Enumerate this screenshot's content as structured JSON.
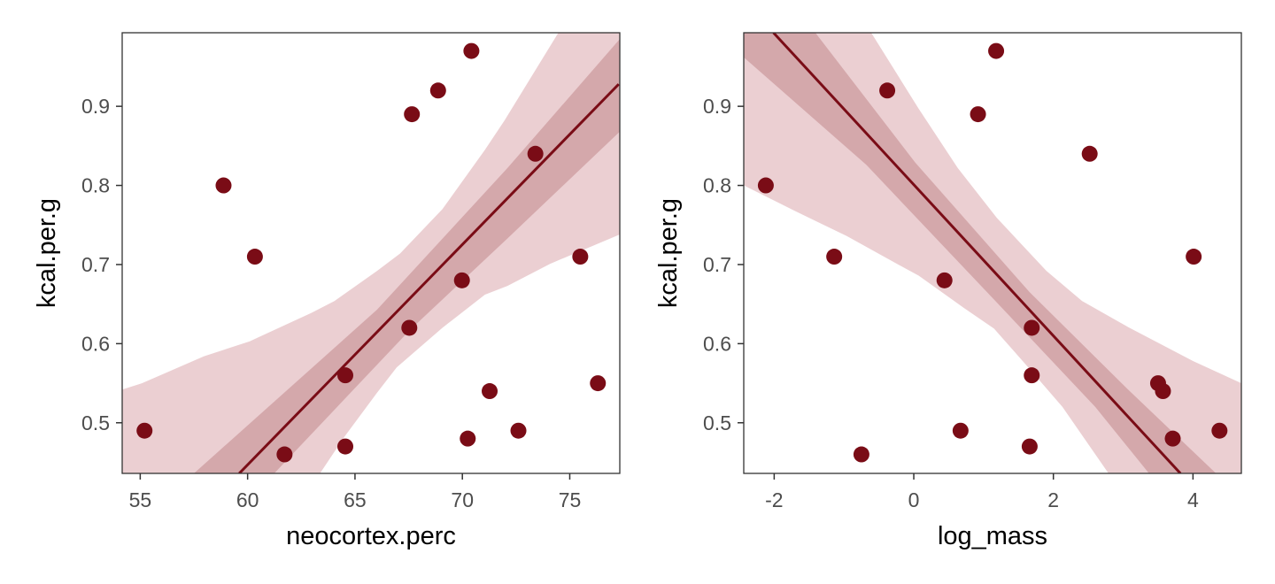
{
  "colors": {
    "point": "#7a0c16",
    "line": "#7a0c16",
    "outer_band": "#ebcfd2",
    "inner_band": "#d4a8ab",
    "axis": "#333333"
  },
  "chart_data": [
    {
      "type": "scatter",
      "xlabel": "neocortex.perc",
      "ylabel": "kcal.per.g",
      "xlim": [
        54.16,
        77.33
      ],
      "ylim": [
        0.436,
        0.993
      ],
      "xticks": [
        55,
        60,
        65,
        70,
        75
      ],
      "xtick_labels": [
        "55",
        "60",
        "65",
        "70",
        "75"
      ],
      "yticks": [
        0.5,
        0.6,
        0.7,
        0.8,
        0.9
      ],
      "ytick_labels": [
        "0.5",
        "0.6",
        "0.7",
        "0.8",
        "0.9"
      ],
      "grid": false,
      "points": [
        [
          55.2,
          0.49
        ],
        [
          58.88,
          0.8
        ],
        [
          60.34,
          0.71
        ],
        [
          61.72,
          0.46
        ],
        [
          64.55,
          0.56
        ],
        [
          64.55,
          0.47
        ],
        [
          67.65,
          0.89
        ],
        [
          68.87,
          0.92
        ],
        [
          70.42,
          0.97
        ],
        [
          67.53,
          0.62
        ],
        [
          69.98,
          0.68
        ],
        [
          71.27,
          0.54
        ],
        [
          70.25,
          0.48
        ],
        [
          72.61,
          0.49
        ],
        [
          73.4,
          0.84
        ],
        [
          75.49,
          0.71
        ],
        [
          76.31,
          0.55
        ]
      ],
      "fit_line": [
        [
          59.61,
          0.436
        ],
        [
          77.28,
          0.928
        ]
      ],
      "outer_band": {
        "upper": [
          [
            54.16,
            0.542
          ],
          [
            55.08,
            0.55
          ],
          [
            57.97,
            0.584
          ],
          [
            60.1,
            0.603
          ],
          [
            62.98,
            0.639
          ],
          [
            64.05,
            0.654
          ],
          [
            66.03,
            0.692
          ],
          [
            67.1,
            0.714
          ],
          [
            69.07,
            0.77
          ],
          [
            71.05,
            0.845
          ],
          [
            71.96,
            0.882
          ],
          [
            74.47,
            0.993
          ],
          [
            77.33,
            0.993
          ]
        ],
        "lower": [
          [
            54.16,
            0.436
          ],
          [
            63.37,
            0.436
          ],
          [
            64.5,
            0.482
          ],
          [
            66.03,
            0.538
          ],
          [
            66.94,
            0.57
          ],
          [
            69.07,
            0.62
          ],
          [
            71.05,
            0.662
          ],
          [
            72.1,
            0.673
          ],
          [
            74.09,
            0.701
          ],
          [
            77.33,
            0.738
          ]
        ]
      },
      "inner_band": {
        "upper": [
          [
            57.5,
            0.436
          ],
          [
            66.03,
            0.643
          ],
          [
            72.1,
            0.822
          ],
          [
            77.33,
            0.985
          ]
        ],
        "lower": [
          [
            61.24,
            0.436
          ],
          [
            67.55,
            0.617
          ],
          [
            72.1,
            0.733
          ],
          [
            77.33,
            0.868
          ]
        ]
      }
    },
    {
      "type": "scatter",
      "xlabel": "log_mass",
      "ylabel": "kcal.per.g",
      "xlim": [
        -2.436,
        4.693
      ],
      "ylim": [
        0.436,
        0.993
      ],
      "xticks": [
        -2,
        0,
        2,
        4
      ],
      "xtick_labels": [
        "-2",
        "0",
        "2",
        "4"
      ],
      "yticks": [
        0.5,
        0.6,
        0.7,
        0.8,
        0.9
      ],
      "ytick_labels": [
        "0.5",
        "0.6",
        "0.7",
        "0.8",
        "0.9"
      ],
      "grid": false,
      "points": [
        [
          -2.12,
          0.8
        ],
        [
          -1.14,
          0.71
        ],
        [
          -0.75,
          0.46
        ],
        [
          -0.38,
          0.92
        ],
        [
          0.44,
          0.68
        ],
        [
          0.67,
          0.49
        ],
        [
          0.92,
          0.89
        ],
        [
          1.18,
          0.97
        ],
        [
          1.69,
          0.62
        ],
        [
          1.69,
          0.56
        ],
        [
          1.66,
          0.47
        ],
        [
          2.52,
          0.84
        ],
        [
          3.5,
          0.55
        ],
        [
          3.57,
          0.54
        ],
        [
          3.71,
          0.48
        ],
        [
          4.01,
          0.71
        ],
        [
          4.38,
          0.49
        ]
      ],
      "fit_line": [
        [
          -2.01,
          0.993
        ],
        [
          3.82,
          0.436
        ]
      ],
      "outer_band": {
        "upper": [
          [
            -2.436,
            0.993
          ],
          [
            -0.61,
            0.993
          ],
          [
            0.07,
            0.897
          ],
          [
            0.63,
            0.822
          ],
          [
            1.19,
            0.759
          ],
          [
            1.9,
            0.692
          ],
          [
            2.41,
            0.654
          ],
          [
            3.07,
            0.621
          ],
          [
            4.0,
            0.578
          ],
          [
            4.693,
            0.55
          ]
        ],
        "lower": [
          [
            -2.436,
            0.8
          ],
          [
            -1.71,
            0.768
          ],
          [
            -0.96,
            0.736
          ],
          [
            -0.12,
            0.695
          ],
          [
            0.07,
            0.686
          ],
          [
            0.72,
            0.645
          ],
          [
            1.15,
            0.619
          ],
          [
            1.66,
            0.568
          ],
          [
            2.13,
            0.52
          ],
          [
            2.79,
            0.436
          ],
          [
            4.693,
            0.436
          ]
        ]
      },
      "inner_band": {
        "upper": [
          [
            -2.436,
            0.993
          ],
          [
            -1.41,
            0.993
          ],
          [
            0.02,
            0.829
          ],
          [
            1.66,
            0.665
          ],
          [
            3.07,
            0.542
          ],
          [
            4.33,
            0.436
          ]
        ],
        "lower": [
          [
            -2.436,
            0.962
          ],
          [
            -0.68,
            0.826
          ],
          [
            1.19,
            0.652
          ],
          [
            2.6,
            0.52
          ],
          [
            3.37,
            0.436
          ]
        ]
      }
    }
  ]
}
